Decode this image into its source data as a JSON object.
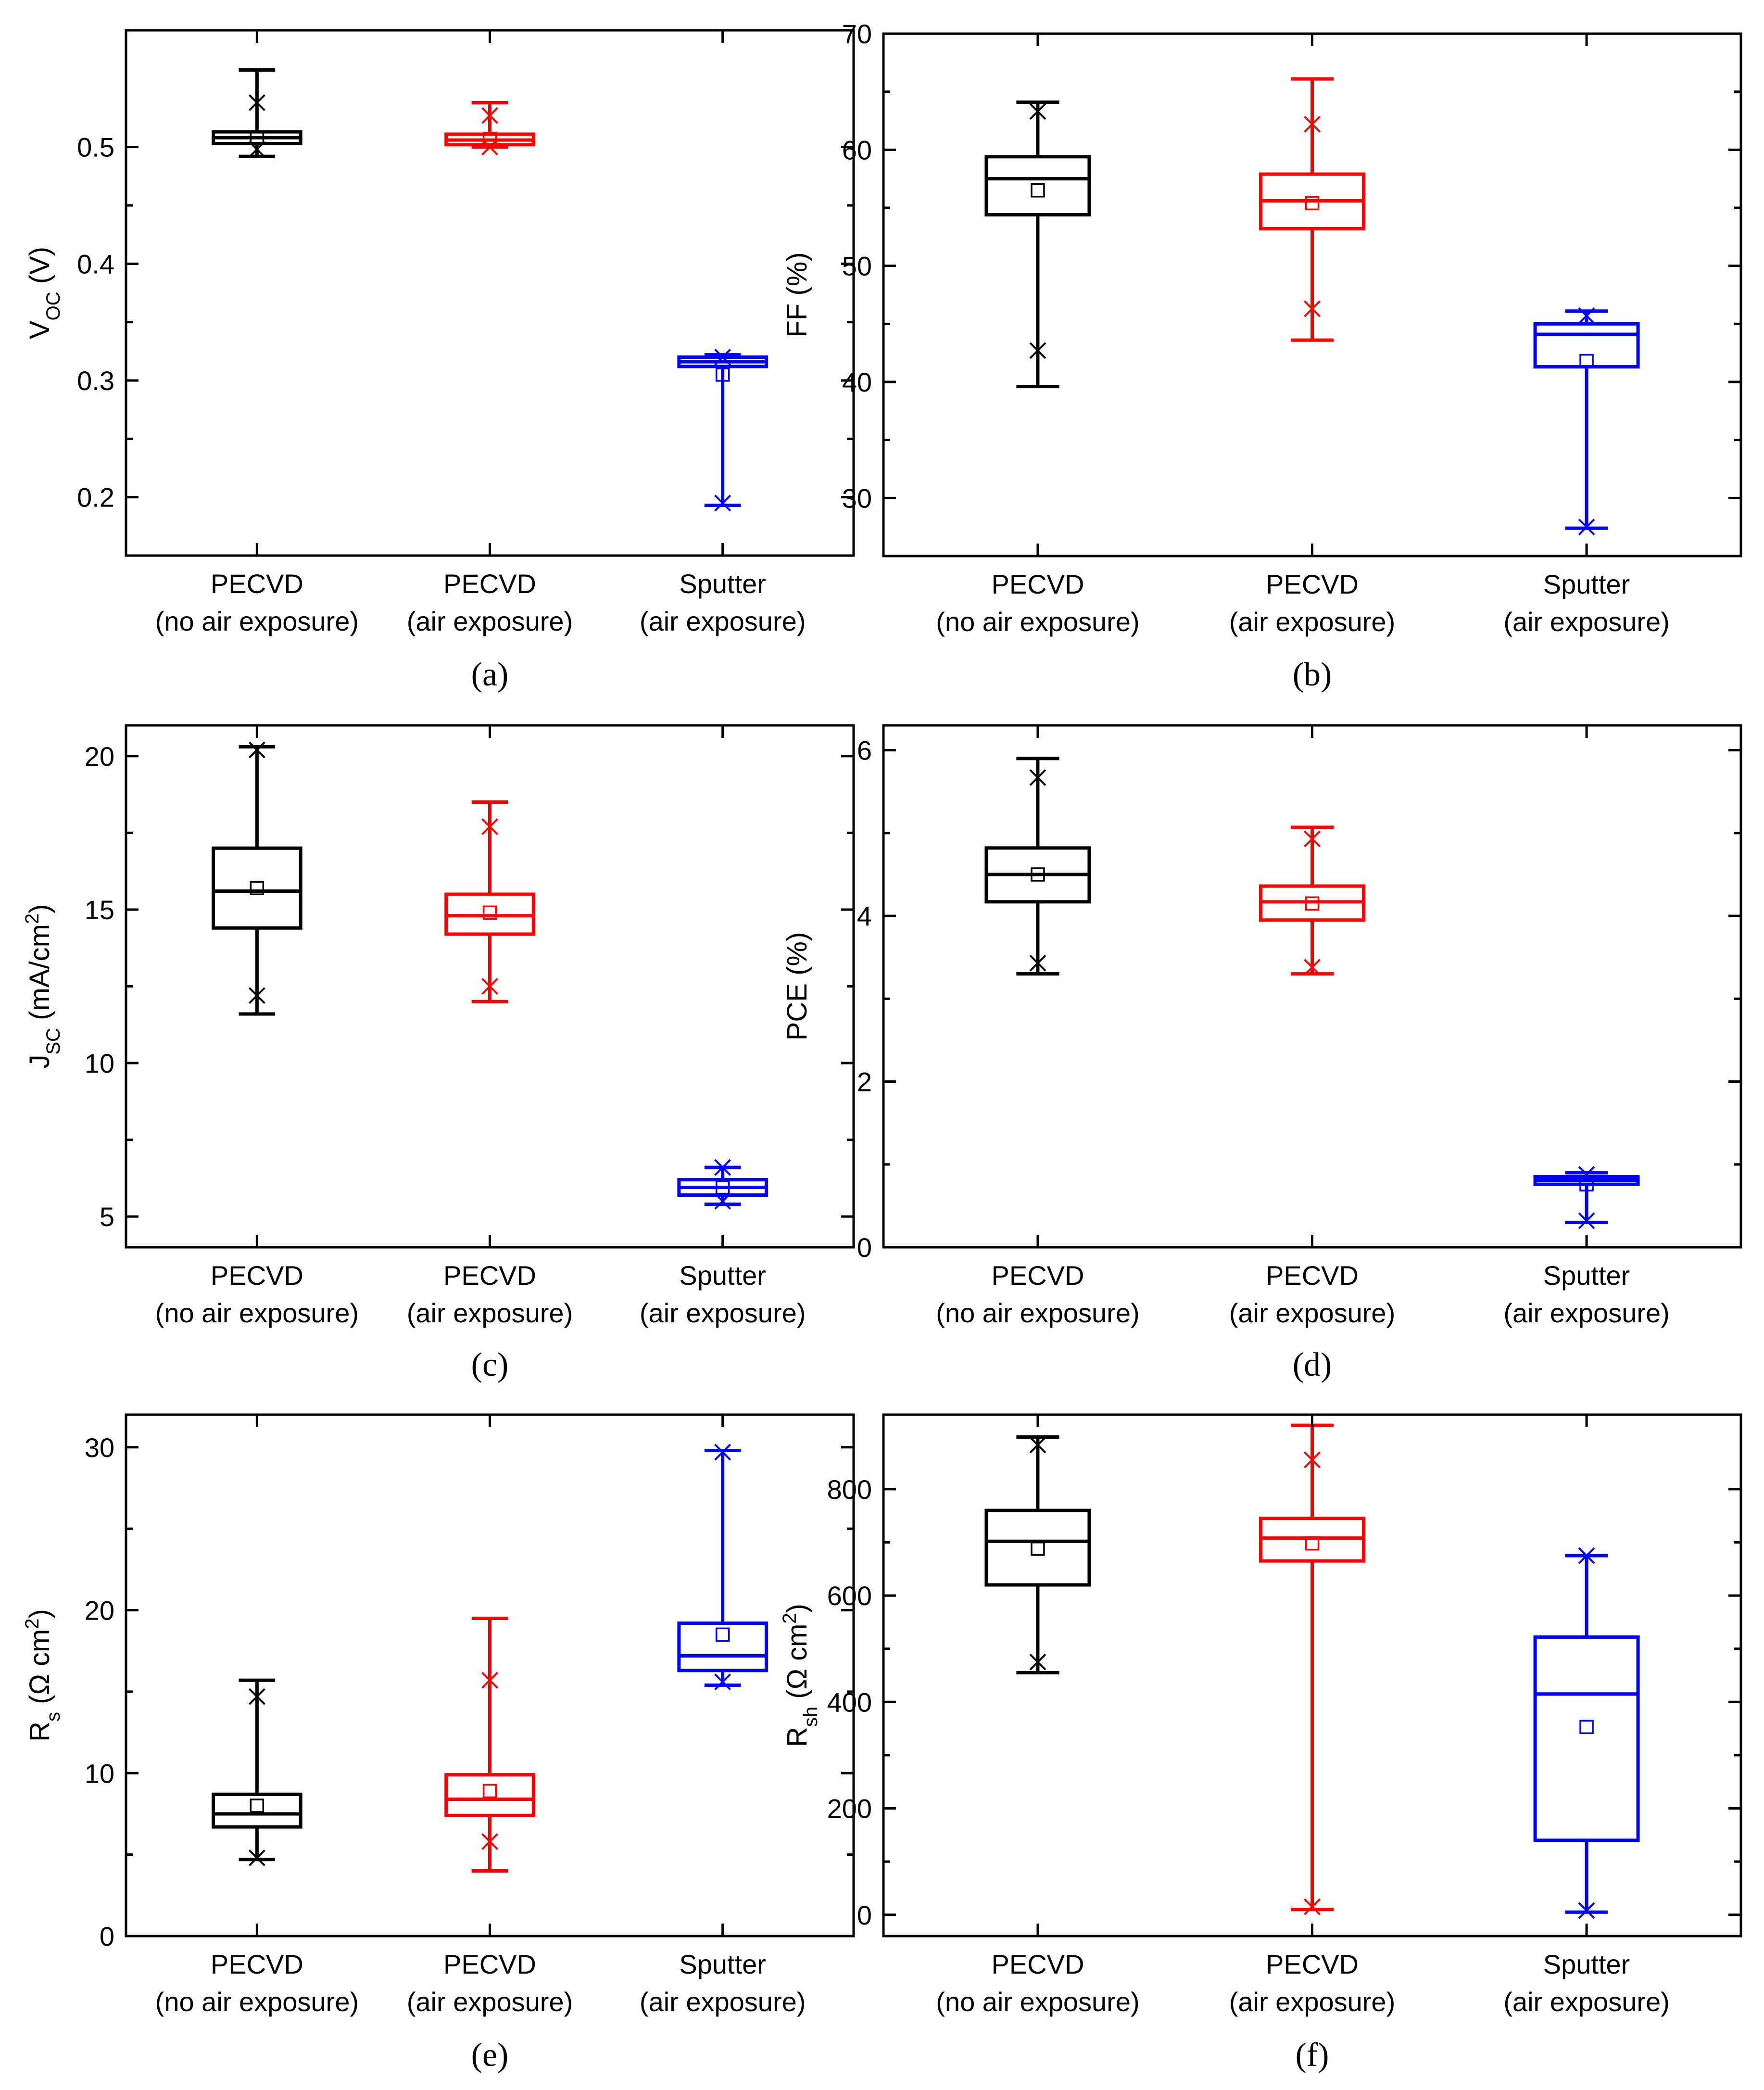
{
  "chart_data": [
    {
      "type": "box",
      "panel_label": "(a)",
      "ylabel": "V_OC (V)",
      "ylabel_main": "V",
      "ylabel_sub": "OC",
      "ylabel_rest": " (V)",
      "ylim": [
        0.15,
        0.6
      ],
      "yticks": [
        0.2,
        0.3,
        0.4,
        0.5
      ],
      "ytick_labels": [
        "0.2",
        "0.3",
        "0.4",
        "0.5"
      ],
      "categories": [
        [
          "PECVD",
          "(no air exposure)"
        ],
        [
          "PECVD",
          "(air exposure)"
        ],
        [
          "Sputter",
          "(air exposure)"
        ]
      ],
      "colors": [
        "#000000",
        "#ff0000",
        "#0000ff"
      ],
      "boxes": [
        {
          "min": 0.492,
          "q1": 0.503,
          "median": 0.508,
          "q3": 0.513,
          "max": 0.566,
          "mean": 0.508,
          "x1": 0.538,
          "x99": 0.498
        },
        {
          "min": 0.5,
          "q1": 0.502,
          "median": 0.506,
          "q3": 0.511,
          "max": 0.538,
          "mean": 0.507,
          "x1": 0.527,
          "x99": 0.5
        },
        {
          "min": 0.193,
          "q1": 0.312,
          "median": 0.316,
          "q3": 0.32,
          "max": 0.322,
          "mean": 0.305,
          "x1": 0.32,
          "x99": 0.195
        }
      ]
    },
    {
      "type": "box",
      "panel_label": "(b)",
      "ylabel": "FF (%)",
      "ylabel_main": "FF (%)",
      "ylabel_sub": "",
      "ylabel_rest": "",
      "ylim": [
        25,
        70
      ],
      "yticks": [
        30,
        40,
        50,
        60,
        70
      ],
      "ytick_labels": [
        "30",
        "40",
        "50",
        "60",
        "70"
      ],
      "categories": [
        [
          "PECVD",
          "(no air exposure)"
        ],
        [
          "PECVD",
          "(air exposure)"
        ],
        [
          "Sputter",
          "(air exposure)"
        ]
      ],
      "colors": [
        "#000000",
        "#ff0000",
        "#0000ff"
      ],
      "boxes": [
        {
          "min": 39.6,
          "q1": 54.4,
          "median": 57.5,
          "q3": 59.4,
          "max": 64.1,
          "mean": 56.5,
          "x1": 63.3,
          "x99": 42.7
        },
        {
          "min": 43.6,
          "q1": 53.2,
          "median": 55.6,
          "q3": 57.9,
          "max": 66.1,
          "mean": 55.4,
          "x1": 62.2,
          "x99": 46.3
        },
        {
          "min": 27.4,
          "q1": 41.3,
          "median": 44.1,
          "q3": 45.0,
          "max": 46.1,
          "mean": 41.8,
          "x1": 45.7,
          "x99": 27.5
        }
      ]
    },
    {
      "type": "box",
      "panel_label": "(c)",
      "ylabel": "J_SC (mA/cm^2)",
      "ylabel_main": "J",
      "ylabel_sub": "SC",
      "ylabel_rest": " (mA/cm",
      "ylabel_sup": "2",
      "ylabel_end": ")",
      "ylim": [
        4,
        21
      ],
      "yticks": [
        5,
        10,
        15,
        20
      ],
      "ytick_labels": [
        "5",
        "10",
        "15",
        "20"
      ],
      "categories": [
        [
          "PECVD",
          "(no air exposure)"
        ],
        [
          "PECVD",
          "(air exposure)"
        ],
        [
          "Sputter",
          "(air exposure)"
        ]
      ],
      "colors": [
        "#000000",
        "#ff0000",
        "#0000ff"
      ],
      "boxes": [
        {
          "min": 11.6,
          "q1": 14.4,
          "median": 15.6,
          "q3": 17.0,
          "max": 20.3,
          "mean": 15.7,
          "x1": 20.2,
          "x99": 12.2
        },
        {
          "min": 12.0,
          "q1": 14.2,
          "median": 14.8,
          "q3": 15.5,
          "max": 18.5,
          "mean": 14.9,
          "x1": 17.7,
          "x99": 12.5
        },
        {
          "min": 5.4,
          "q1": 5.7,
          "median": 5.95,
          "q3": 6.2,
          "max": 6.6,
          "mean": 5.95,
          "x1": 6.6,
          "x99": 5.5
        }
      ]
    },
    {
      "type": "box",
      "panel_label": "(d)",
      "ylabel": "PCE (%)",
      "ylabel_main": "PCE (%)",
      "ylabel_sub": "",
      "ylabel_rest": "",
      "ylim": [
        0,
        6.3
      ],
      "yticks": [
        0,
        2,
        4,
        6
      ],
      "ytick_labels": [
        "0",
        "2",
        "4",
        "6"
      ],
      "categories": [
        [
          "PECVD",
          "(no air exposure)"
        ],
        [
          "PECVD",
          "(air exposure)"
        ],
        [
          "Sputter",
          "(air exposure)"
        ]
      ],
      "colors": [
        "#000000",
        "#ff0000",
        "#0000ff"
      ],
      "boxes": [
        {
          "min": 3.3,
          "q1": 4.17,
          "median": 4.5,
          "q3": 4.82,
          "max": 5.9,
          "mean": 4.5,
          "x1": 5.67,
          "x99": 3.43
        },
        {
          "min": 3.3,
          "q1": 3.95,
          "median": 4.17,
          "q3": 4.36,
          "max": 5.07,
          "mean": 4.15,
          "x1": 4.93,
          "x99": 3.38
        },
        {
          "min": 0.3,
          "q1": 0.76,
          "median": 0.81,
          "q3": 0.85,
          "max": 0.9,
          "mean": 0.76,
          "x1": 0.88,
          "x99": 0.32
        }
      ]
    },
    {
      "type": "box",
      "panel_label": "(e)",
      "ylabel": "R_s (Ω cm^2)",
      "ylabel_main": "R",
      "ylabel_sub": "s",
      "ylabel_rest": " (Ω cm",
      "ylabel_sup": "2",
      "ylabel_end": ")",
      "ylim": [
        0,
        32
      ],
      "yticks": [
        0,
        10,
        20,
        30
      ],
      "ytick_labels": [
        "0",
        "10",
        "20",
        "30"
      ],
      "categories": [
        [
          "PECVD",
          "(no air exposure)"
        ],
        [
          "PECVD",
          "(air exposure)"
        ],
        [
          "Sputter",
          "(air exposure)"
        ]
      ],
      "colors": [
        "#000000",
        "#ff0000",
        "#0000ff"
      ],
      "boxes": [
        {
          "min": 4.7,
          "q1": 6.7,
          "median": 7.5,
          "q3": 8.7,
          "max": 15.7,
          "mean": 8.0,
          "x1": 14.7,
          "x99": 4.8
        },
        {
          "min": 4.0,
          "q1": 7.4,
          "median": 8.4,
          "q3": 9.9,
          "max": 19.5,
          "mean": 8.9,
          "x1": 15.7,
          "x99": 5.8
        },
        {
          "min": 15.4,
          "q1": 16.3,
          "median": 17.2,
          "q3": 19.2,
          "max": 29.8,
          "mean": 18.5,
          "x1": 29.7,
          "x99": 15.6
        }
      ]
    },
    {
      "type": "box",
      "panel_label": "(f)",
      "ylabel": "R_sh (Ω cm^2)",
      "ylabel_main": "R",
      "ylabel_sub": "sh",
      "ylabel_rest": " (Ω cm",
      "ylabel_sup": "2",
      "ylabel_end": ")",
      "ylim": [
        -40,
        940
      ],
      "yticks": [
        0,
        200,
        400,
        600,
        800
      ],
      "ytick_labels": [
        "0",
        "200",
        "400",
        "600",
        "800"
      ],
      "categories": [
        [
          "PECVD",
          "(no air exposure)"
        ],
        [
          "PECVD",
          "(air exposure)"
        ],
        [
          "Sputter",
          "(air exposure)"
        ]
      ],
      "colors": [
        "#000000",
        "#ff0000",
        "#0000ff"
      ],
      "boxes": [
        {
          "min": 455,
          "q1": 620,
          "median": 702,
          "q3": 760,
          "max": 898,
          "mean": 688,
          "x1": 883,
          "x99": 475
        },
        {
          "min": 10,
          "q1": 665,
          "median": 708,
          "q3": 745,
          "max": 920,
          "mean": 698,
          "x1": 855,
          "x99": 15
        },
        {
          "min": 5,
          "q1": 140,
          "median": 415,
          "q3": 522,
          "max": 675,
          "mean": 353,
          "x1": 675,
          "x99": 8
        }
      ]
    }
  ]
}
